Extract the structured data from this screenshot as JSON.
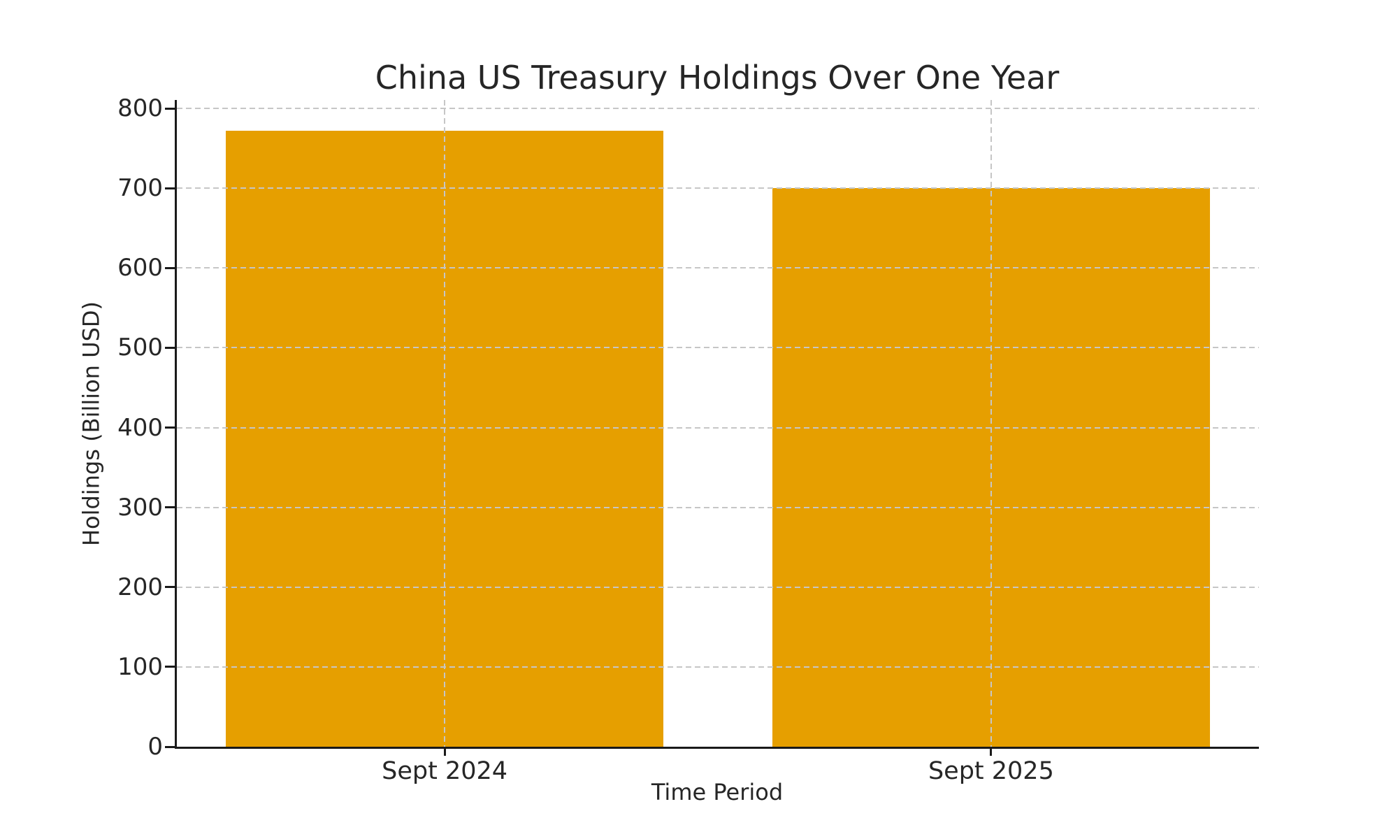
{
  "chart_data": {
    "type": "bar",
    "title": "China US Treasury Holdings Over One Year",
    "xlabel": "Time Period",
    "ylabel": "Holdings (Billion USD)",
    "categories": [
      "Sept 2024",
      "Sept 2025"
    ],
    "values": [
      772,
      700
    ],
    "yticks": [
      0,
      100,
      200,
      300,
      400,
      500,
      600,
      700,
      800
    ],
    "ylim": [
      0,
      810.6
    ],
    "xlim_units": [
      -0.49,
      1.49
    ],
    "bar_width_units": 0.8,
    "grid": true,
    "grid_style": "dashed",
    "grid_over_bars": true,
    "legend": false,
    "spines": [
      "left",
      "bottom"
    ],
    "colors": {
      "bar": "#E69F00",
      "grid": "#C6C6C6",
      "axis": "#1A1A1A",
      "text": "#262626",
      "background": "#FFFFFF"
    }
  }
}
